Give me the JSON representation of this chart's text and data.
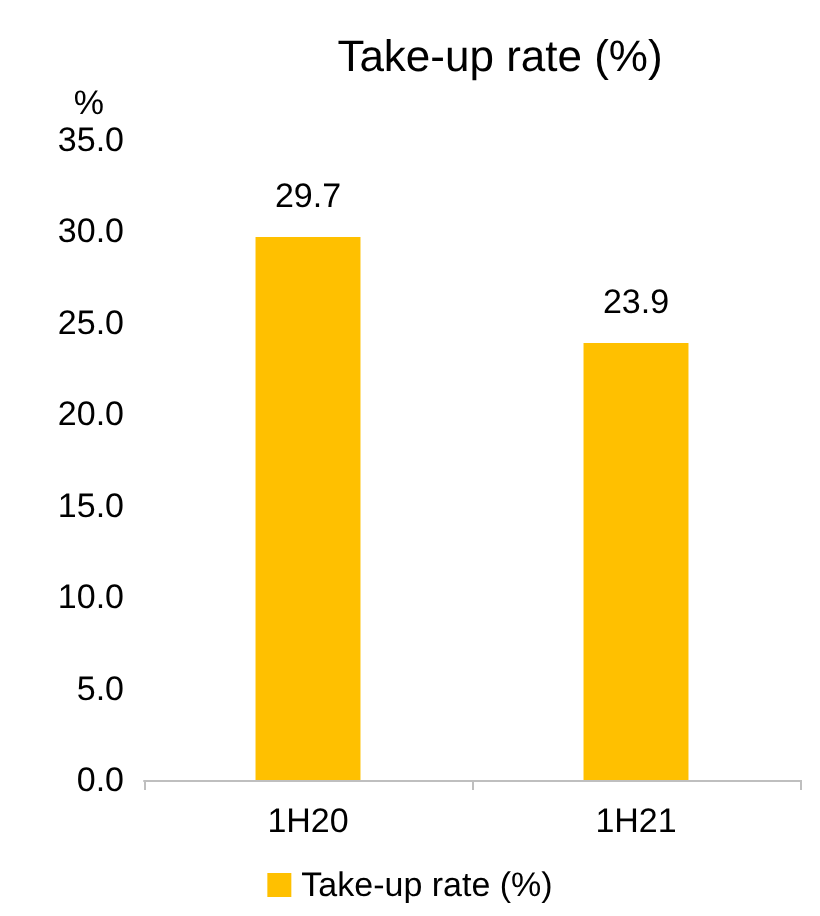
{
  "chart_data": {
    "type": "bar",
    "title": "Take-up rate (%)",
    "ylabel": "%",
    "categories": [
      "1H20",
      "1H21"
    ],
    "series": [
      {
        "name": "Take-up rate (%)",
        "color": "#ffc000",
        "values": [
          29.7,
          23.9
        ]
      }
    ],
    "ylim": [
      0,
      35
    ],
    "yticks": [
      {
        "value": 0,
        "label": "0.0"
      },
      {
        "value": 5,
        "label": "5.0"
      },
      {
        "value": 10,
        "label": "10.0"
      },
      {
        "value": 15,
        "label": "15.0"
      },
      {
        "value": 20,
        "label": "20.0"
      },
      {
        "value": 25,
        "label": "25.0"
      },
      {
        "value": 30,
        "label": "30.0"
      },
      {
        "value": 35,
        "label": "35.0"
      }
    ],
    "grid": false,
    "legend": "bottom",
    "data_labels": true
  }
}
